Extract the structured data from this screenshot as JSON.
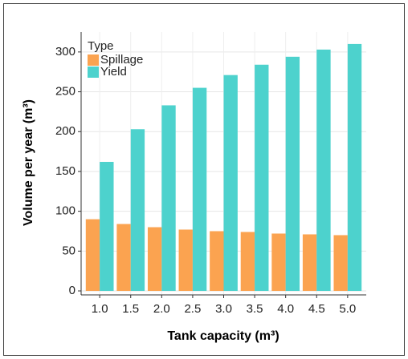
{
  "chart_data": {
    "type": "bar",
    "x_label": "Tank capacity (m³)",
    "y_label": "Volume per year (m³)",
    "legend_title": "Type",
    "legend_position": "top-left",
    "categories": [
      "1.0",
      "1.5",
      "2.0",
      "2.5",
      "3.0",
      "3.5",
      "4.0",
      "4.5",
      "5.0"
    ],
    "series": [
      {
        "name": "Spillage",
        "color": "#fba350",
        "values": [
          90,
          84,
          80,
          77,
          75,
          74,
          72,
          71,
          70
        ]
      },
      {
        "name": "Yield",
        "color": "#4dd2cd",
        "values": [
          162,
          203,
          233,
          255,
          271,
          284,
          294,
          303,
          310
        ]
      }
    ],
    "ylim": [
      -5,
      325
    ],
    "yticks": [
      0,
      50,
      100,
      150,
      200,
      250,
      300
    ],
    "grid": true
  }
}
